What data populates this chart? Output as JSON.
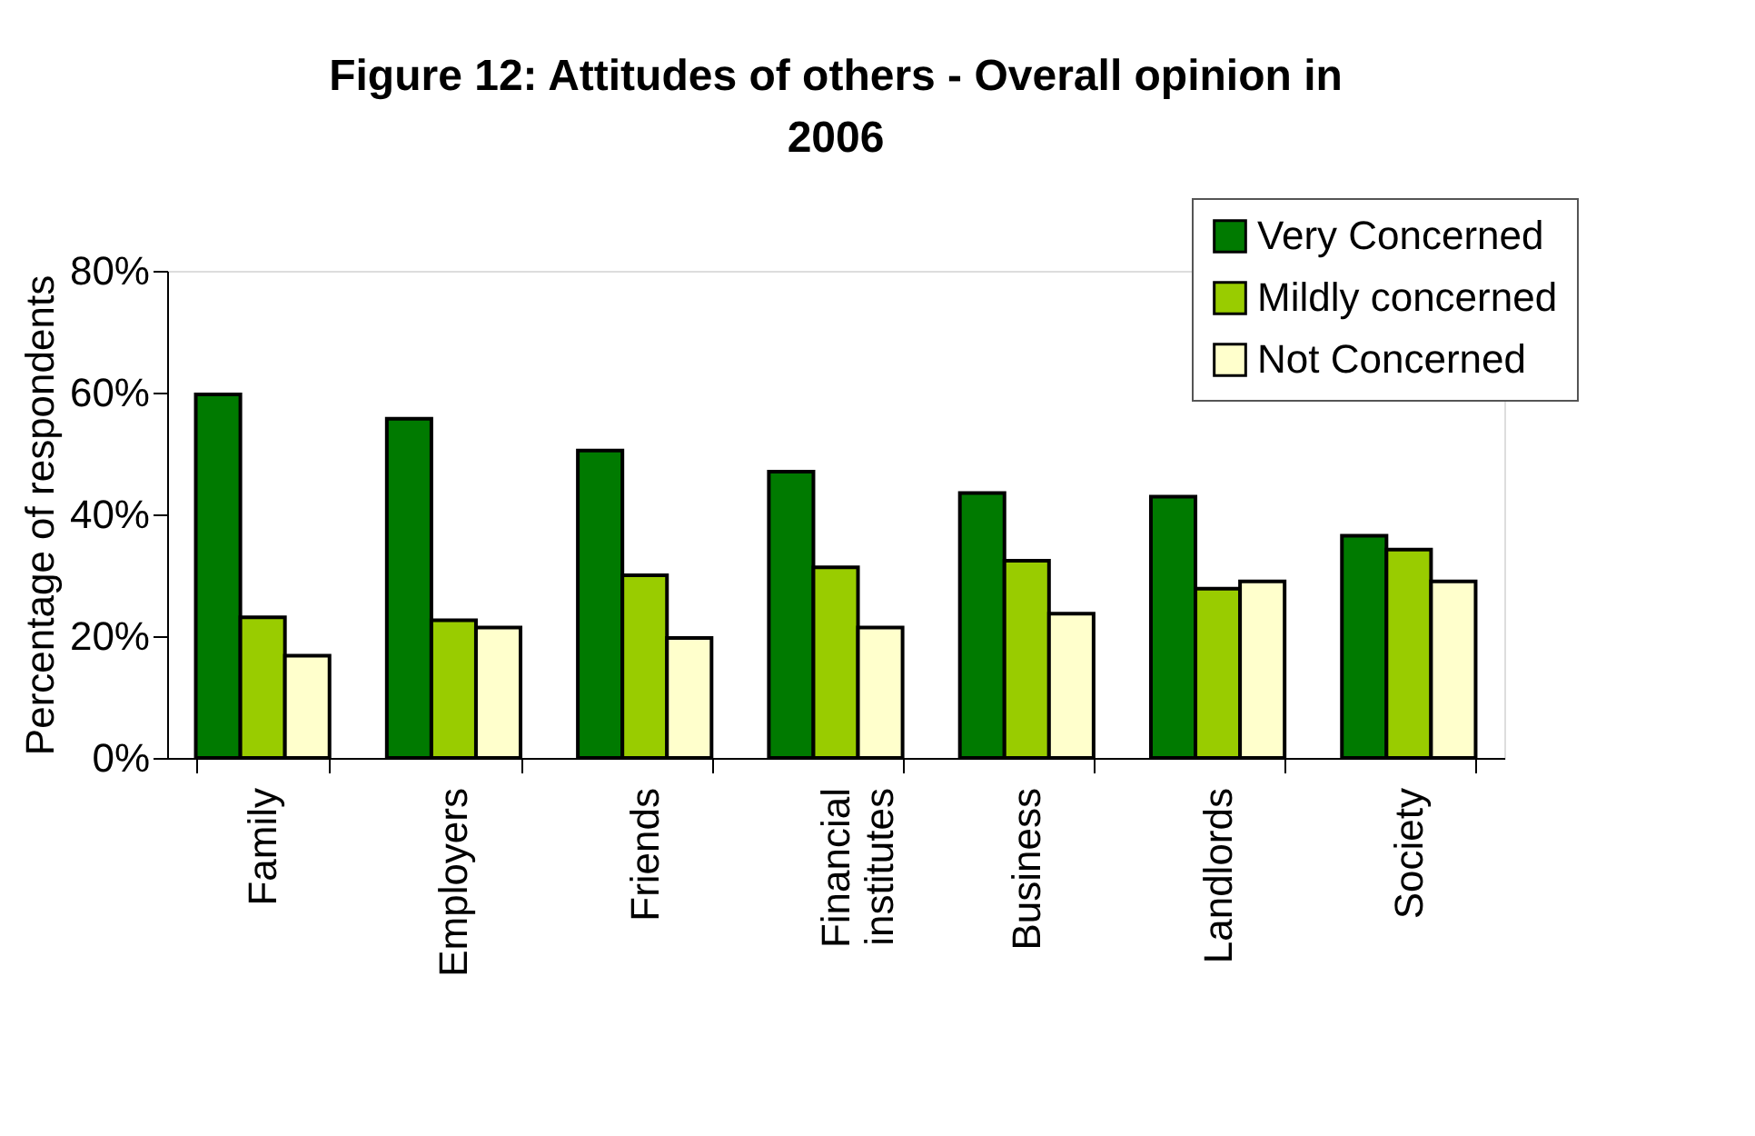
{
  "chart_data": {
    "type": "bar",
    "title": "Figure 12: Attitudes of others - Overall opinion in 2006",
    "ylabel": "Percentage of respondents",
    "categories": [
      "Family",
      "Employers",
      "Friends",
      "Financial institutes",
      "Business",
      "Landlords",
      "Society"
    ],
    "series": [
      {
        "name": "Very Concerned",
        "color": "#007a00",
        "values": [
          59.7,
          55.7,
          50.5,
          47.0,
          43.5,
          42.9,
          36.5
        ]
      },
      {
        "name": "Mildly concerned",
        "color": "#99cc00",
        "values": [
          23.1,
          22.6,
          30.0,
          31.3,
          32.4,
          27.8,
          34.2
        ]
      },
      {
        "name": "Not Concerned",
        "color": "#ffffcc",
        "values": [
          16.8,
          21.4,
          19.7,
          21.4,
          23.7,
          29.0,
          29.0
        ]
      }
    ],
    "ylim": [
      0,
      80
    ],
    "yticks": [
      {
        "value": 0,
        "label": "0%"
      },
      {
        "value": 20,
        "label": "20%"
      },
      {
        "value": 40,
        "label": "40%"
      },
      {
        "value": 60,
        "label": "60%"
      },
      {
        "value": 80,
        "label": "80%"
      }
    ],
    "legend": "top right",
    "grid": false
  }
}
